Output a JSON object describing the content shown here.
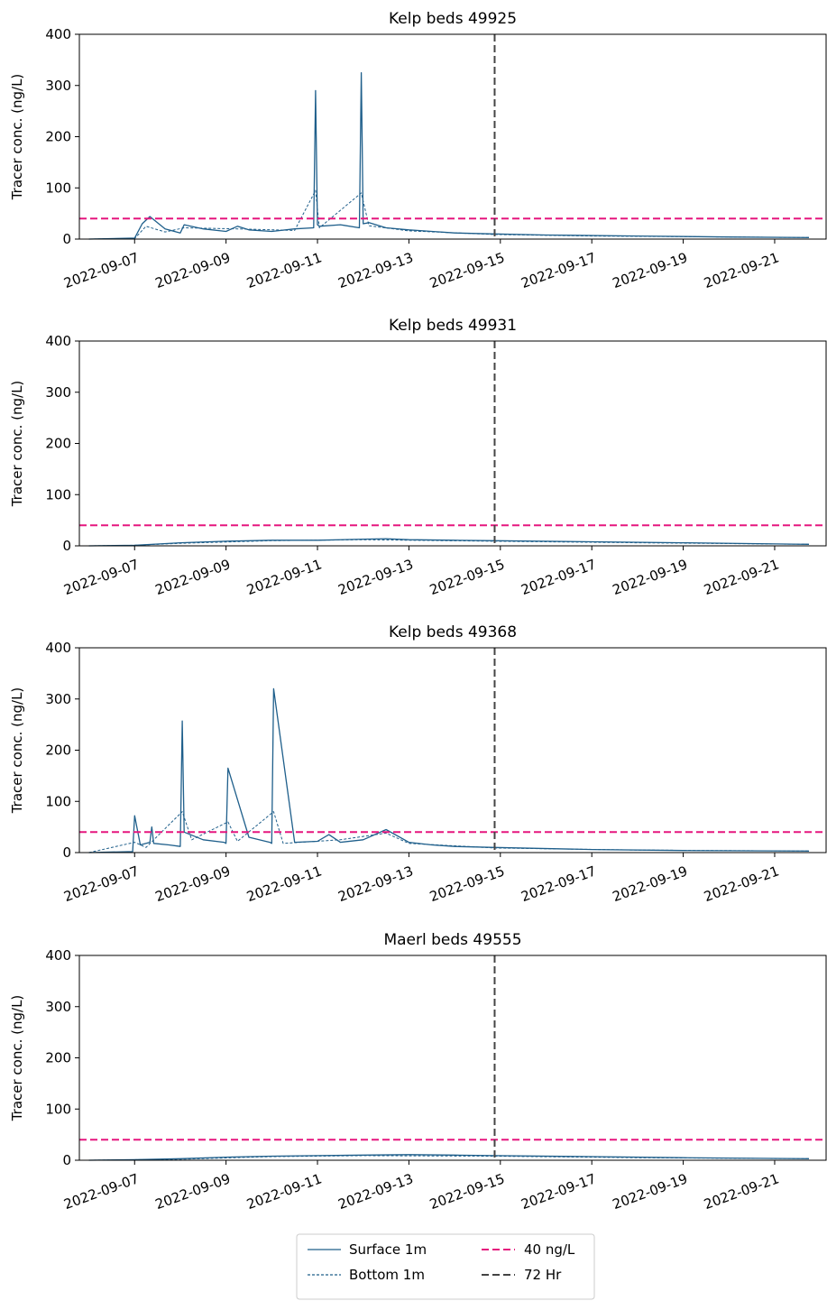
{
  "legend": {
    "items": [
      {
        "label": "Surface 1m",
        "style": "solid",
        "color": "#1f5f8b"
      },
      {
        "label": "Bottom 1m",
        "style": "dotted",
        "color": "#1f5f8b"
      },
      {
        "label": "40 ng/L",
        "style": "dashed",
        "color": "#e5177e"
      },
      {
        "label": "72 Hr",
        "style": "dashed",
        "color": "#444444"
      }
    ]
  },
  "colors": {
    "series": "#1f5f8b",
    "threshold": "#e5177e",
    "marker": "#444444"
  },
  "chart_data": [
    {
      "type": "line",
      "title": "Kelp beds 49925",
      "ylabel": "Tracer conc. (ng/L)",
      "ylim": [
        0,
        400
      ],
      "yticks": [
        0,
        100,
        200,
        300,
        400
      ],
      "xlim": [
        "2022-09-05T19:00",
        "2022-09-22T03:00"
      ],
      "xticks": [
        "2022-09-07",
        "2022-09-09",
        "2022-09-11",
        "2022-09-13",
        "2022-09-15",
        "2022-09-17",
        "2022-09-19",
        "2022-09-21"
      ],
      "threshold": 40,
      "vline": "2022-09-14T21:00",
      "series": [
        {
          "name": "Surface 1m",
          "x": [
            "2022-09-06T00:00",
            "2022-09-07T00:00",
            "2022-09-07T04:00",
            "2022-09-07T08:00",
            "2022-09-07T16:00",
            "2022-09-08T00:00",
            "2022-09-08T02:00",
            "2022-09-08T12:00",
            "2022-09-09T00:00",
            "2022-09-09T06:00",
            "2022-09-09T12:00",
            "2022-09-10T00:00",
            "2022-09-10T12:00",
            "2022-09-10T22:00",
            "2022-09-10T23:00",
            "2022-09-11T00:00",
            "2022-09-11T01:00",
            "2022-09-11T12:00",
            "2022-09-11T22:00",
            "2022-09-11T23:00",
            "2022-09-12T00:00",
            "2022-09-12T03:00",
            "2022-09-12T12:00",
            "2022-09-13T00:00",
            "2022-09-13T12:00",
            "2022-09-14T00:00",
            "2022-09-14T21:00",
            "2022-09-16T00:00",
            "2022-09-18T00:00",
            "2022-09-20T00:00",
            "2022-09-21T18:00"
          ],
          "y": [
            0,
            2,
            30,
            44,
            20,
            12,
            28,
            20,
            15,
            25,
            18,
            15,
            20,
            22,
            290,
            28,
            25,
            28,
            22,
            325,
            30,
            32,
            22,
            18,
            15,
            12,
            10,
            8,
            6,
            4,
            3
          ]
        },
        {
          "name": "Bottom 1m",
          "x": [
            "2022-09-06T00:00",
            "2022-09-07T00:00",
            "2022-09-07T06:00",
            "2022-09-07T16:00",
            "2022-09-08T02:00",
            "2022-09-09T06:00",
            "2022-09-10T12:00",
            "2022-09-10T23:00",
            "2022-09-11T01:00",
            "2022-09-11T23:00",
            "2022-09-12T03:00",
            "2022-09-13T00:00",
            "2022-09-14T21:00",
            "2022-09-17T00:00",
            "2022-09-21T18:00"
          ],
          "y": [
            0,
            1,
            25,
            14,
            22,
            20,
            17,
            95,
            22,
            90,
            26,
            16,
            9,
            6,
            3
          ]
        }
      ]
    },
    {
      "type": "line",
      "title": "Kelp beds 49931",
      "ylabel": "Tracer conc. (ng/L)",
      "ylim": [
        0,
        400
      ],
      "yticks": [
        0,
        100,
        200,
        300,
        400
      ],
      "xlim": [
        "2022-09-05T19:00",
        "2022-09-22T03:00"
      ],
      "xticks": [
        "2022-09-07",
        "2022-09-09",
        "2022-09-11",
        "2022-09-13",
        "2022-09-15",
        "2022-09-17",
        "2022-09-19",
        "2022-09-21"
      ],
      "threshold": 40,
      "vline": "2022-09-14T21:00",
      "series": [
        {
          "name": "Surface 1m",
          "x": [
            "2022-09-06T00:00",
            "2022-09-07T00:00",
            "2022-09-08T00:00",
            "2022-09-09T00:00",
            "2022-09-10T00:00",
            "2022-09-11T00:00",
            "2022-09-12T00:00",
            "2022-09-12T12:00",
            "2022-09-13T00:00",
            "2022-09-14T00:00",
            "2022-09-14T21:00",
            "2022-09-17T00:00",
            "2022-09-19T00:00",
            "2022-09-21T18:00"
          ],
          "y": [
            0,
            1,
            6,
            9,
            11,
            11,
            13,
            14,
            12,
            11,
            10,
            8,
            6,
            3
          ]
        },
        {
          "name": "Bottom 1m",
          "x": [
            "2022-09-06T00:00",
            "2022-09-07T00:00",
            "2022-09-08T00:00",
            "2022-09-10T00:00",
            "2022-09-12T00:00",
            "2022-09-14T21:00",
            "2022-09-18T00:00",
            "2022-09-21T18:00"
          ],
          "y": [
            0,
            1,
            5,
            10,
            12,
            9,
            6,
            3
          ]
        }
      ]
    },
    {
      "type": "line",
      "title": "Kelp beds 49368",
      "ylabel": "Tracer conc. (ng/L)",
      "ylim": [
        0,
        400
      ],
      "yticks": [
        0,
        100,
        200,
        300,
        400
      ],
      "xlim": [
        "2022-09-05T19:00",
        "2022-09-22T03:00"
      ],
      "xticks": [
        "2022-09-07",
        "2022-09-09",
        "2022-09-11",
        "2022-09-13",
        "2022-09-15",
        "2022-09-17",
        "2022-09-19",
        "2022-09-21"
      ],
      "threshold": 40,
      "vline": "2022-09-14T21:00",
      "series": [
        {
          "name": "Surface 1m",
          "x": [
            "2022-09-06T00:00",
            "2022-09-06T23:00",
            "2022-09-07T00:00",
            "2022-09-07T03:00",
            "2022-09-07T08:00",
            "2022-09-07T09:00",
            "2022-09-07T10:00",
            "2022-09-07T18:00",
            "2022-09-08T00:00",
            "2022-09-08T01:00",
            "2022-09-08T02:00",
            "2022-09-08T12:00",
            "2022-09-08T23:00",
            "2022-09-09T00:00",
            "2022-09-09T01:00",
            "2022-09-09T12:00",
            "2022-09-09T23:00",
            "2022-09-10T00:00",
            "2022-09-10T01:00",
            "2022-09-10T12:00",
            "2022-09-11T00:00",
            "2022-09-11T06:00",
            "2022-09-11T12:00",
            "2022-09-12T00:00",
            "2022-09-12T12:00",
            "2022-09-13T00:00",
            "2022-09-13T12:00",
            "2022-09-14T00:00",
            "2022-09-14T21:00",
            "2022-09-17T00:00",
            "2022-09-19T00:00",
            "2022-09-21T18:00"
          ],
          "y": [
            0,
            2,
            72,
            15,
            20,
            50,
            18,
            15,
            12,
            257,
            40,
            25,
            20,
            18,
            165,
            30,
            20,
            18,
            320,
            20,
            22,
            35,
            20,
            25,
            45,
            20,
            15,
            12,
            10,
            6,
            4,
            3
          ]
        },
        {
          "name": "Bottom 1m",
          "x": [
            "2022-09-06T00:00",
            "2022-09-07T00:00",
            "2022-09-07T06:00",
            "2022-09-08T01:00",
            "2022-09-08T06:00",
            "2022-09-09T01:00",
            "2022-09-09T06:00",
            "2022-09-10T01:00",
            "2022-09-10T06:00",
            "2022-09-11T12:00",
            "2022-09-12T12:00",
            "2022-09-13T00:00",
            "2022-09-14T21:00",
            "2022-09-18T00:00",
            "2022-09-21T18:00"
          ],
          "y": [
            0,
            20,
            10,
            80,
            25,
            60,
            22,
            80,
            18,
            25,
            38,
            18,
            9,
            5,
            3
          ]
        }
      ]
    },
    {
      "type": "line",
      "title": "Maerl beds 49555",
      "ylabel": "Tracer conc. (ng/L)",
      "ylim": [
        0,
        400
      ],
      "yticks": [
        0,
        100,
        200,
        300,
        400
      ],
      "xlim": [
        "2022-09-05T19:00",
        "2022-09-22T03:00"
      ],
      "xticks": [
        "2022-09-07",
        "2022-09-09",
        "2022-09-11",
        "2022-09-13",
        "2022-09-15",
        "2022-09-17",
        "2022-09-19",
        "2022-09-21"
      ],
      "threshold": 40,
      "vline": "2022-09-14T21:00",
      "series": [
        {
          "name": "Surface 1m",
          "x": [
            "2022-09-06T00:00",
            "2022-09-07T00:00",
            "2022-09-08T00:00",
            "2022-09-09T00:00",
            "2022-09-10T00:00",
            "2022-09-11T00:00",
            "2022-09-12T00:00",
            "2022-09-13T00:00",
            "2022-09-14T00:00",
            "2022-09-14T21:00",
            "2022-09-17T00:00",
            "2022-09-19T00:00",
            "2022-09-21T18:00"
          ],
          "y": [
            0,
            1,
            3,
            6,
            8,
            9,
            10,
            11,
            10,
            9,
            7,
            5,
            3
          ]
        },
        {
          "name": "Bottom 1m",
          "x": [
            "2022-09-06T00:00",
            "2022-09-08T00:00",
            "2022-09-10T00:00",
            "2022-09-12T00:00",
            "2022-09-14T21:00",
            "2022-09-18T00:00",
            "2022-09-21T18:00"
          ],
          "y": [
            0,
            2,
            7,
            9,
            8,
            5,
            3
          ]
        }
      ]
    }
  ]
}
